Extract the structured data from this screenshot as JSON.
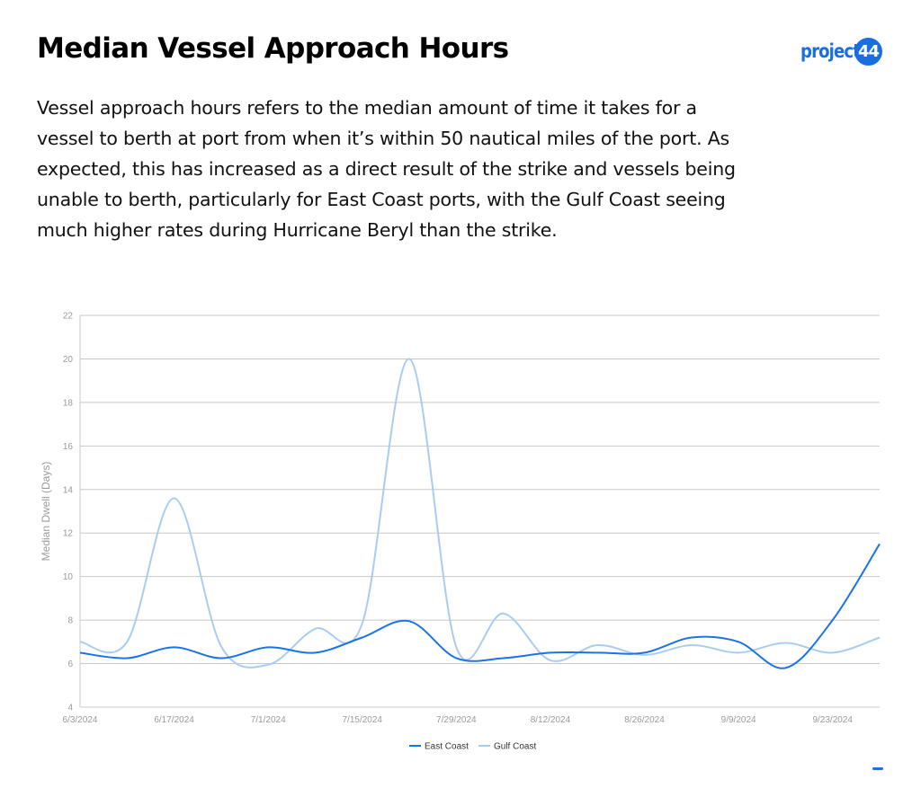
{
  "header": {
    "title": "Median Vessel Approach Hours",
    "logo_text": "project",
    "logo_badge": "44"
  },
  "description": "Vessel approach hours refers to the median amount of time it takes for a vessel to berth at port from when it’s within 50 nautical miles of the port. As expected, this has increased as a direct result of the strike and vessels being unable to berth, particularly for East Coast ports, with the Gulf Coast seeing much higher rates during Hurricane Beryl than the strike.",
  "colors": {
    "brand": "#1a6fe0",
    "east_coast": "#1a73e8",
    "gulf_coast": "#a9cdf2",
    "grid": "#c8c8c8",
    "axis_text": "#9a9a9a"
  },
  "chart_data": {
    "type": "line",
    "title": "",
    "xlabel": "",
    "ylabel": "Median Dwell (Days)",
    "ylim": [
      4,
      22
    ],
    "yticks": [
      4,
      6,
      8,
      10,
      12,
      14,
      16,
      18,
      20,
      22
    ],
    "xlim": [
      "6/3/2024",
      "9/30/2024"
    ],
    "xticks": [
      "6/3/2024",
      "6/17/2024",
      "7/1/2024",
      "7/15/2024",
      "7/29/2024",
      "8/12/2024",
      "8/26/2024",
      "9/9/2024",
      "9/23/2024"
    ],
    "x": [
      "6/3/2024",
      "6/10/2024",
      "6/17/2024",
      "6/24/2024",
      "7/1/2024",
      "7/8/2024",
      "7/15/2024",
      "7/22/2024",
      "7/29/2024",
      "8/5/2024",
      "8/12/2024",
      "8/19/2024",
      "8/26/2024",
      "9/2/2024",
      "9/9/2024",
      "9/16/2024",
      "9/23/2024",
      "9/30/2024"
    ],
    "series": [
      {
        "name": "East Coast",
        "values": [
          6.5,
          6.25,
          6.75,
          6.25,
          6.75,
          6.5,
          7.2,
          7.95,
          6.25,
          6.25,
          6.5,
          6.5,
          6.5,
          7.2,
          7.0,
          5.8,
          8.0,
          11.5
        ]
      },
      {
        "name": "Gulf Coast",
        "values": [
          7.0,
          7.0,
          13.6,
          6.8,
          5.95,
          7.6,
          7.85,
          20.0,
          6.75,
          8.3,
          6.15,
          6.85,
          6.4,
          6.85,
          6.5,
          6.95,
          6.5,
          7.2
        ]
      }
    ],
    "legend_position": "bottom-center",
    "grid": true
  }
}
